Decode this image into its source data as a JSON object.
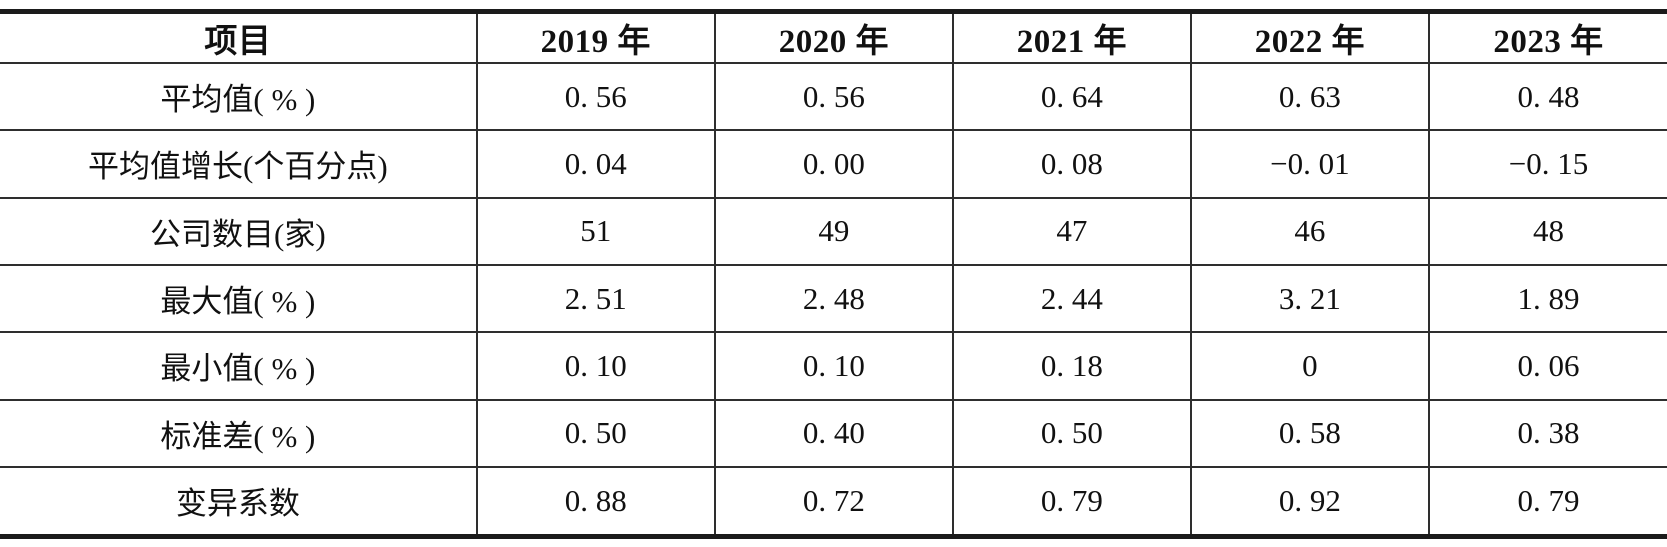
{
  "table": {
    "columns": [
      "项目",
      "2019 年",
      "2020 年",
      "2021 年",
      "2022 年",
      "2023 年"
    ],
    "rows": [
      {
        "label": "平均值( % )",
        "values": [
          "0. 56",
          "0. 56",
          "0. 64",
          "0. 63",
          "0. 48"
        ]
      },
      {
        "label": "平均值增长(个百分点)",
        "values": [
          "0. 04",
          "0. 00",
          "0. 08",
          "−0. 01",
          "−0. 15"
        ]
      },
      {
        "label": "公司数目(家)",
        "values": [
          "51",
          "49",
          "47",
          "46",
          "48"
        ]
      },
      {
        "label": "最大值( % )",
        "values": [
          "2. 51",
          "2. 48",
          "2. 44",
          "3. 21",
          "1. 89"
        ]
      },
      {
        "label": "最小值( % )",
        "values": [
          "0. 10",
          "0. 10",
          "0. 18",
          "0",
          "0. 06"
        ]
      },
      {
        "label": "标准差( % )",
        "values": [
          "0. 50",
          "0. 40",
          "0. 50",
          "0. 58",
          "0. 38"
        ]
      },
      {
        "label": "变异系数",
        "values": [
          "0. 88",
          "0. 72",
          "0. 79",
          "0. 92",
          "0. 79"
        ]
      }
    ]
  }
}
